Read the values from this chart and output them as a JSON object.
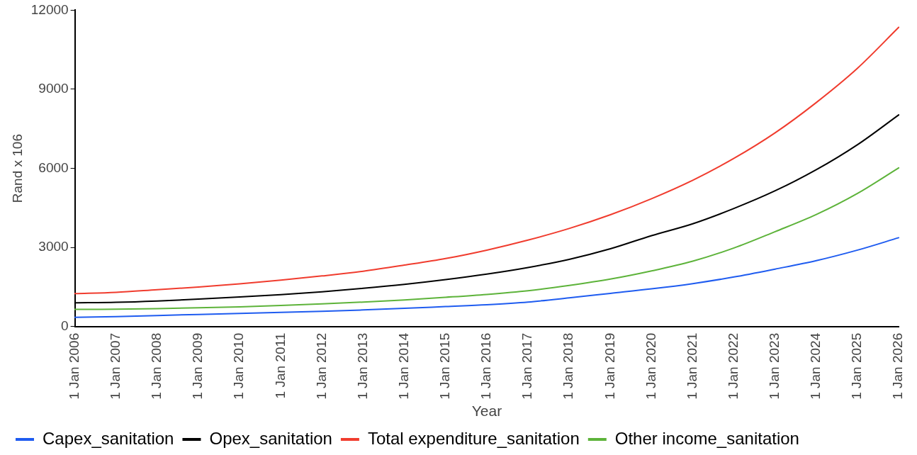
{
  "chart_data": {
    "type": "line",
    "xlabel": "Year",
    "ylabel": "Rand x 106",
    "categories": [
      "1 Jan 2006",
      "1 Jan 2007",
      "1 Jan 2008",
      "1 Jan 2009",
      "1 Jan 2010",
      "1 Jan 2011",
      "1 Jan 2012",
      "1 Jan 2013",
      "1 Jan 2014",
      "1 Jan 2015",
      "1 Jan 2016",
      "1 Jan 2017",
      "1 Jan 2018",
      "1 Jan 2019",
      "1 Jan 2020",
      "1 Jan 2021",
      "1 Jan 2022",
      "1 Jan 2023",
      "1 Jan 2024",
      "1 Jan 2025",
      "1 Jan 2026"
    ],
    "series": [
      {
        "name": "Capex_sanitation",
        "color": "#1f5cf0",
        "values": [
          350,
          380,
          420,
          460,
          500,
          540,
          580,
          630,
          690,
          760,
          830,
          930,
          1090,
          1260,
          1430,
          1630,
          1880,
          2180,
          2500,
          2900,
          3370
        ]
      },
      {
        "name": "Opex_sanitation",
        "color": "#000000",
        "values": [
          900,
          920,
          970,
          1040,
          1120,
          1210,
          1320,
          1450,
          1600,
          1780,
          1990,
          2240,
          2550,
          2950,
          3450,
          3900,
          4480,
          5150,
          5950,
          6900,
          8030
        ]
      },
      {
        "name": "Total expenditure_sanitation",
        "color": "#f03c2e",
        "values": [
          1250,
          1300,
          1400,
          1500,
          1620,
          1760,
          1920,
          2100,
          2330,
          2580,
          2900,
          3280,
          3720,
          4240,
          4850,
          5550,
          6380,
          7350,
          8500,
          9800,
          11350
        ]
      },
      {
        "name": "Other income_sanitation",
        "color": "#5db33a",
        "values": [
          650,
          660,
          680,
          710,
          750,
          800,
          860,
          930,
          1010,
          1110,
          1220,
          1360,
          1560,
          1800,
          2110,
          2480,
          2980,
          3600,
          4250,
          5050,
          6020
        ]
      }
    ],
    "ylim": [
      0,
      12000
    ],
    "yticks": [
      0,
      3000,
      6000,
      9000,
      12000
    ],
    "grid": false,
    "legend": "bottom",
    "marker": "none",
    "line_style": "solid"
  }
}
